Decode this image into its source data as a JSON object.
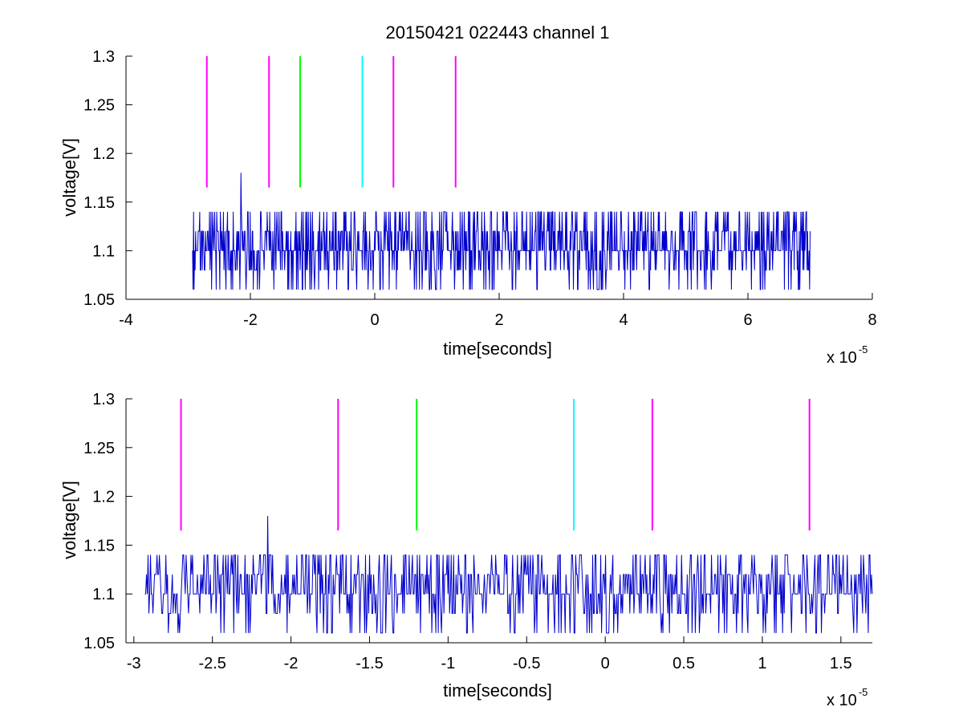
{
  "chart_data": [
    {
      "type": "line",
      "title": "20150421 022443 channel 1",
      "xlabel": "time[seconds]",
      "ylabel": "voltage[V]",
      "x_multiplier": "x 10",
      "x_exponent": "-5",
      "xlim": [
        -4,
        8
      ],
      "ylim": [
        1.05,
        1.3
      ],
      "xticks": [
        -4,
        -2,
        0,
        2,
        4,
        6,
        8
      ],
      "xtick_labels": [
        "-4",
        "-2",
        "0",
        "2",
        "4",
        "6",
        "8"
      ],
      "yticks": [
        1.05,
        1.1,
        1.15,
        1.2,
        1.25,
        1.3
      ],
      "ytick_labels": [
        "1.05",
        "1.1",
        "1.15",
        "1.2",
        "1.25",
        "1.3"
      ],
      "grid": false,
      "series": [
        {
          "color": "#0000cc",
          "x_start": -2.93,
          "x_end": 7.0,
          "seed": 7,
          "levels": [
            1.06,
            1.08,
            1.1,
            1.12,
            1.14,
            1.16,
            1.18
          ],
          "spike": {
            "x": -2.15,
            "y": 1.18
          }
        }
      ],
      "markers": [
        {
          "x": -2.7,
          "y_from": 1.165,
          "y_to": 1.3,
          "color": "#ff00ff"
        },
        {
          "x": -1.7,
          "y_from": 1.165,
          "y_to": 1.3,
          "color": "#ff00ff"
        },
        {
          "x": -1.2,
          "y_from": 1.165,
          "y_to": 1.3,
          "color": "#00ff00"
        },
        {
          "x": -0.2,
          "y_from": 1.165,
          "y_to": 1.3,
          "color": "#00ffff"
        },
        {
          "x": 0.3,
          "y_from": 1.165,
          "y_to": 1.3,
          "color": "#ff00ff"
        },
        {
          "x": 1.3,
          "y_from": 1.165,
          "y_to": 1.3,
          "color": "#ff00ff"
        }
      ]
    },
    {
      "type": "line",
      "title": "",
      "xlabel": "time[seconds]",
      "ylabel": "voltage[V]",
      "x_multiplier": "x 10",
      "x_exponent": "-5",
      "xlim": [
        -3.05,
        1.7
      ],
      "ylim": [
        1.05,
        1.3
      ],
      "xticks": [
        -3,
        -2.5,
        -2,
        -1.5,
        -1,
        -0.5,
        0,
        0.5,
        1,
        1.5
      ],
      "xtick_labels": [
        "-3",
        "-2.5",
        "-2",
        "-1.5",
        "-1",
        "-0.5",
        "0",
        "0.5",
        "1",
        "1.5"
      ],
      "yticks": [
        1.05,
        1.1,
        1.15,
        1.2,
        1.25,
        1.3
      ],
      "ytick_labels": [
        "1.05",
        "1.1",
        "1.15",
        "1.2",
        "1.25",
        "1.3"
      ],
      "grid": false,
      "series": [
        {
          "color": "#0000cc",
          "x_start": -2.93,
          "x_end": 1.7,
          "seed": 11,
          "levels": [
            1.06,
            1.08,
            1.1,
            1.12,
            1.14,
            1.16,
            1.18
          ],
          "spike": {
            "x": -2.15,
            "y": 1.18
          }
        }
      ],
      "markers": [
        {
          "x": -2.7,
          "y_from": 1.165,
          "y_to": 1.3,
          "color": "#ff00ff"
        },
        {
          "x": -1.7,
          "y_from": 1.165,
          "y_to": 1.3,
          "color": "#ff00ff"
        },
        {
          "x": -1.2,
          "y_from": 1.165,
          "y_to": 1.3,
          "color": "#00ff00"
        },
        {
          "x": -0.2,
          "y_from": 1.165,
          "y_to": 1.3,
          "color": "#00ffff"
        },
        {
          "x": 0.3,
          "y_from": 1.165,
          "y_to": 1.3,
          "color": "#ff00ff"
        },
        {
          "x": 1.3,
          "y_from": 1.165,
          "y_to": 1.3,
          "color": "#ff00ff"
        }
      ]
    }
  ]
}
